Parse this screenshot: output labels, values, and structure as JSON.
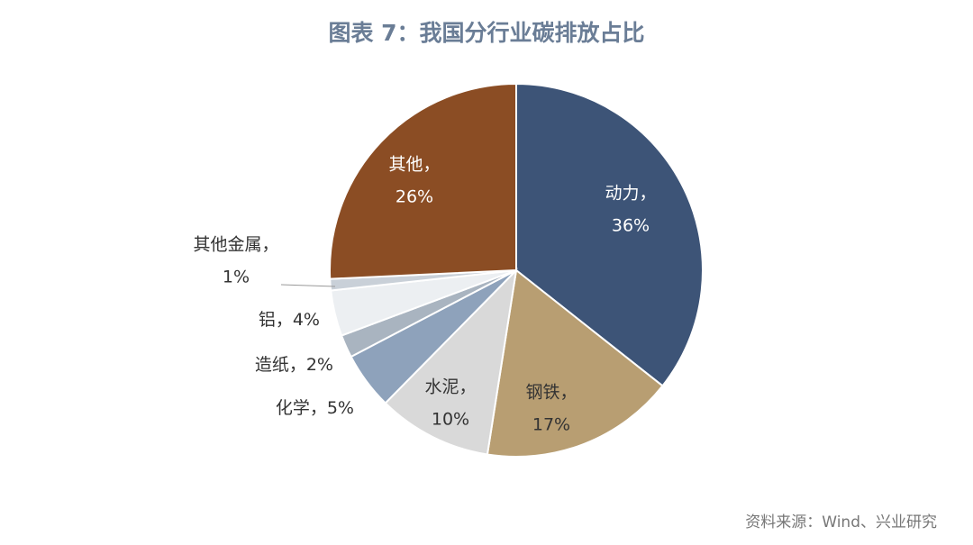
{
  "chart_data": {
    "type": "pie",
    "title": "图表 7：我国分行业碳排放占比",
    "categories": [
      "动力，",
      "钢铁，",
      "水泥，",
      "化学，",
      "造纸，",
      "铝，",
      "其他金属，",
      "其他，"
    ],
    "values": [
      36,
      17,
      10,
      5,
      2,
      4,
      1,
      26
    ],
    "value_labels": [
      "36%",
      "17%",
      "10%",
      "5%",
      "2%",
      "4%",
      "1%",
      "26%"
    ],
    "colors": [
      "#3d5477",
      "#b89e72",
      "#d9d9d9",
      "#8ea2bb",
      "#a9b4c0",
      "#eceff2",
      "#c9d0d8",
      "#8b4d24"
    ],
    "source": "资料来源：Wind、兴业研究"
  }
}
